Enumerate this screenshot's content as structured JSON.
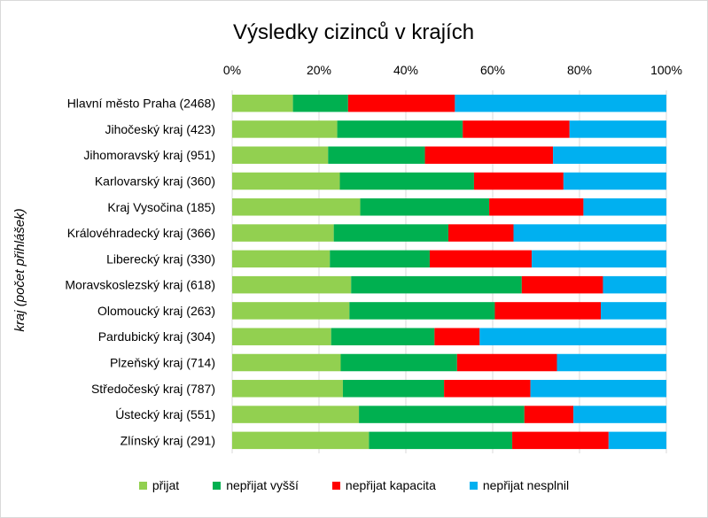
{
  "chart_data": {
    "type": "bar",
    "orientation": "horizontal",
    "stacked": "percent",
    "title": "Výsledky cizinců v krajích",
    "ylabel": "kraj (počet přihlášek)",
    "xlabel": "",
    "xlim": [
      0,
      100
    ],
    "xticks": [
      "0%",
      "20%",
      "40%",
      "60%",
      "80%",
      "100%"
    ],
    "grid": true,
    "legend_position": "bottom",
    "categories": [
      "Hlavní město Praha (2468)",
      "Jihočeský kraj (423)",
      "Jihomoravský kraj (951)",
      "Karlovarský kraj (360)",
      "Kraj Vysočina (185)",
      "Královéhradecký kraj (366)",
      "Liberecký kraj (330)",
      "Moravskoslezský kraj (618)",
      "Olomoucký kraj (263)",
      "Pardubický kraj (304)",
      "Plzeňský kraj (714)",
      "Středočeský kraj (787)",
      "Ústecký kraj (551)",
      "Zlínský kraj (291)"
    ],
    "series": [
      {
        "name": "přijat",
        "color": "#92d050",
        "values": [
          14.0,
          24.2,
          22.1,
          24.8,
          29.5,
          23.4,
          22.5,
          27.4,
          27.0,
          22.8,
          25.0,
          25.5,
          29.2,
          31.5
        ]
      },
      {
        "name": "nepřijat vyšší",
        "color": "#00b050",
        "values": [
          12.7,
          28.9,
          22.3,
          30.9,
          29.7,
          26.4,
          23.0,
          39.3,
          33.5,
          23.8,
          26.8,
          23.3,
          38.1,
          33.0
        ]
      },
      {
        "name": "nepřijat kapacita",
        "color": "#ff0000",
        "values": [
          24.6,
          24.6,
          29.5,
          20.6,
          21.7,
          15.0,
          23.5,
          18.7,
          24.4,
          10.4,
          23.0,
          19.9,
          11.3,
          22.2
        ]
      },
      {
        "name": "nepřijat nesplnil",
        "color": "#00b0f0",
        "values": [
          48.7,
          22.3,
          26.1,
          23.7,
          19.1,
          35.2,
          31.0,
          14.6,
          15.1,
          43.0,
          25.2,
          31.3,
          21.4,
          13.3
        ]
      }
    ]
  }
}
